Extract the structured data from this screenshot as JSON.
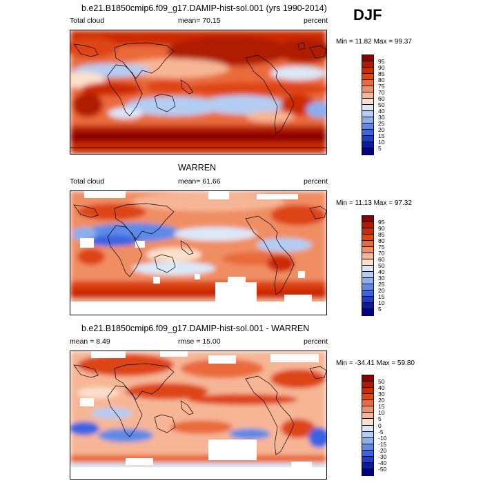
{
  "season": "DJF",
  "panels": [
    {
      "title": "b.e21.B1850cmip6.f09_g17.DAMIP-hist-sol.001 (yrs 1990-2014)",
      "left_label": "Total cloud",
      "mid_label": "mean=  70.15",
      "right_label": "percent",
      "minmax": "Min =  11.82 Max =  99.37",
      "levels": [
        "95",
        "90",
        "85",
        "80",
        "75",
        "70",
        "60",
        "50",
        "40",
        "30",
        "25",
        "20",
        "15",
        "10",
        "5"
      ]
    },
    {
      "title": "WARREN",
      "left_label": "Total cloud",
      "mid_label": "mean=  61.66",
      "right_label": "percent",
      "minmax": "Min =  11.13 Max =  97.32",
      "levels": [
        "95",
        "90",
        "85",
        "80",
        "75",
        "70",
        "60",
        "50",
        "40",
        "30",
        "25",
        "20",
        "15",
        "10",
        "5"
      ]
    },
    {
      "title": "b.e21.B1850cmip6.f09_g17.DAMIP-hist-sol.001 - WARREN",
      "left_label": "mean =   8.49",
      "mid_label": "rmse =  15.00",
      "right_label": "percent",
      "minmax": "Min = -34.41 Max =  59.80",
      "levels": [
        "50",
        "40",
        "30",
        "20",
        "15",
        "10",
        "5",
        "0",
        "-5",
        "-10",
        "-15",
        "-20",
        "-30",
        "-40",
        "-50"
      ]
    }
  ],
  "colors": {
    "palette": [
      "#8b0000",
      "#b01a00",
      "#cc2a00",
      "#de4513",
      "#ea6a3a",
      "#f08e64",
      "#f6b696",
      "#fbe0cc",
      "#dce8f8",
      "#b4cdf3",
      "#8aafec",
      "#5d8ae6",
      "#3a64e2",
      "#1e3ecc",
      "#0c1a9e",
      "#00008b"
    ]
  },
  "chart_data": [
    {
      "type": "heatmap",
      "title": "b.e21.B1850cmip6.f09_g17.DAMIP-hist-sol.001 (yrs 1990-2014)",
      "variable": "Total cloud",
      "units": "percent",
      "mean": 70.15,
      "min": 11.82,
      "max": 99.37,
      "contour_levels": [
        5,
        10,
        15,
        20,
        25,
        30,
        40,
        50,
        60,
        70,
        75,
        80,
        85,
        90,
        95
      ]
    },
    {
      "type": "heatmap",
      "title": "WARREN",
      "variable": "Total cloud",
      "units": "percent",
      "mean": 61.66,
      "min": 11.13,
      "max": 97.32,
      "contour_levels": [
        5,
        10,
        15,
        20,
        25,
        30,
        40,
        50,
        60,
        70,
        75,
        80,
        85,
        90,
        95
      ]
    },
    {
      "type": "heatmap",
      "title": "b.e21.B1850cmip6.f09_g17.DAMIP-hist-sol.001 - WARREN",
      "units": "percent",
      "mean": 8.49,
      "rmse": 15.0,
      "min": -34.41,
      "max": 59.8,
      "contour_levels": [
        -50,
        -40,
        -30,
        -20,
        -15,
        -10,
        -5,
        0,
        5,
        10,
        15,
        20,
        30,
        40,
        50
      ]
    }
  ]
}
